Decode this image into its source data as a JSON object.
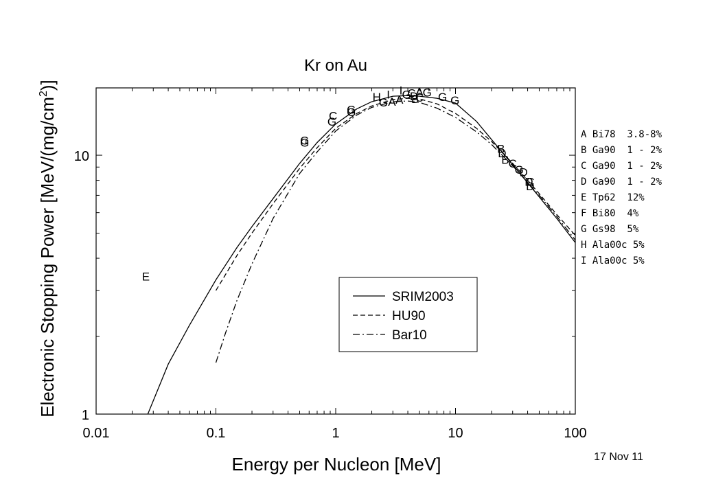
{
  "chart_data": {
    "type": "line",
    "title": "Kr on Au",
    "xlabel": "Energy per Nucleon [MeV]",
    "ylabel_main": "Electronic Stopping Power [MeV/(mg/cm",
    "ylabel_sup": "2",
    "ylabel_end": ")]",
    "x_scale": "log",
    "y_scale": "log",
    "xlim": [
      0.01,
      100
    ],
    "ylim": [
      1,
      18.2
    ],
    "x_ticks": [
      {
        "value": 0.01,
        "label": "0.01"
      },
      {
        "value": 0.1,
        "label": "0.1"
      },
      {
        "value": 1,
        "label": "1"
      },
      {
        "value": 10,
        "label": "10"
      },
      {
        "value": 100,
        "label": "100"
      }
    ],
    "y_ticks": [
      {
        "value": 1,
        "label": "1"
      },
      {
        "value": 10,
        "label": "10"
      }
    ],
    "legend_position": "bottom-center",
    "series": [
      {
        "name": "SRIM2003",
        "dash": "solid",
        "x": [
          0.027,
          0.04,
          0.06,
          0.1,
          0.15,
          0.2,
          0.3,
          0.5,
          0.7,
          1,
          1.5,
          2,
          3,
          4,
          5,
          7,
          10,
          15,
          20,
          30,
          50,
          70,
          100
        ],
        "y": [
          1.0,
          1.56,
          2.2,
          3.3,
          4.4,
          5.3,
          6.8,
          9.3,
          11.2,
          13.2,
          15.1,
          16.1,
          16.9,
          17.0,
          16.9,
          16.6,
          15.9,
          13.5,
          11.5,
          9.2,
          6.9,
          5.7,
          4.6
        ]
      },
      {
        "name": "HU90",
        "dash": "dash",
        "x": [
          0.1,
          0.15,
          0.2,
          0.3,
          0.5,
          0.7,
          1,
          1.5,
          2,
          3,
          4,
          5,
          7,
          10,
          15,
          20,
          30,
          40,
          50,
          70,
          100
        ],
        "y": [
          3.0,
          4.1,
          5.0,
          6.5,
          8.9,
          10.7,
          12.7,
          14.5,
          15.5,
          16.4,
          16.6,
          16.5,
          15.8,
          14.5,
          12.7,
          11.3,
          9.3,
          8.0,
          7.1,
          5.9,
          4.9
        ]
      },
      {
        "name": "Bar10",
        "dash": "dashdot",
        "x": [
          0.1,
          0.12,
          0.15,
          0.2,
          0.3,
          0.5,
          0.7,
          1,
          1.5,
          2,
          3,
          4,
          5,
          7,
          10,
          15,
          20,
          30,
          50,
          70,
          100
        ],
        "y": [
          1.58,
          2.05,
          2.75,
          3.8,
          5.7,
          8.5,
          10.3,
          12.4,
          14.3,
          15.3,
          16.1,
          16.2,
          16.0,
          15.2,
          14.0,
          12.3,
          11.0,
          9.1,
          7.0,
          5.8,
          4.7
        ]
      }
    ],
    "points": [
      {
        "l": "E",
        "x": 0.026,
        "y": 3.4
      },
      {
        "l": "G",
        "x": 0.55,
        "y": 11.4
      },
      {
        "l": "G",
        "x": 0.55,
        "y": 11.2
      },
      {
        "l": "C",
        "x": 0.95,
        "y": 14.2
      },
      {
        "l": "G",
        "x": 0.93,
        "y": 13.5
      },
      {
        "l": "G",
        "x": 1.35,
        "y": 15.0
      },
      {
        "l": "G",
        "x": 1.35,
        "y": 14.7
      },
      {
        "l": "H",
        "x": 2.2,
        "y": 16.8
      },
      {
        "l": "I",
        "x": 2.75,
        "y": 17.2
      },
      {
        "l": "G",
        "x": 2.5,
        "y": 16.0
      },
      {
        "l": "A",
        "x": 2.95,
        "y": 16.1
      },
      {
        "l": "I",
        "x": 3.5,
        "y": 17.8
      },
      {
        "l": "A",
        "x": 3.4,
        "y": 16.4
      },
      {
        "l": "G",
        "x": 3.9,
        "y": 17.2
      },
      {
        "l": "C",
        "x": 4.3,
        "y": 17.4
      },
      {
        "l": "D",
        "x": 4.5,
        "y": 16.9
      },
      {
        "l": "B",
        "x": 4.6,
        "y": 16.5
      },
      {
        "l": "A",
        "x": 5.0,
        "y": 17.6
      },
      {
        "l": "G",
        "x": 5.8,
        "y": 17.5
      },
      {
        "l": "C",
        "x": 5.0,
        "y": 16.7
      },
      {
        "l": "G",
        "x": 7.8,
        "y": 16.8
      },
      {
        "l": "G",
        "x": 9.9,
        "y": 16.3
      },
      {
        "l": "B",
        "x": 24.0,
        "y": 10.6
      },
      {
        "l": "D",
        "x": 24.5,
        "y": 10.2
      },
      {
        "l": "B",
        "x": 26.0,
        "y": 9.6
      },
      {
        "l": "C",
        "x": 30.0,
        "y": 9.3
      },
      {
        "l": "G",
        "x": 34.0,
        "y": 8.8
      },
      {
        "l": "D",
        "x": 37.0,
        "y": 8.6
      },
      {
        "l": "C",
        "x": 42.0,
        "y": 7.9
      },
      {
        "l": "D",
        "x": 42.0,
        "y": 7.6
      },
      {
        "l": "D",
        "x": 41.0,
        "y": 7.9
      }
    ],
    "point_legend": [
      "A Bi78  3.8-8%",
      "B Ga90  1 - 2%",
      "C Ga90  1 - 2%",
      "D Ga90  1 - 2%",
      "E Tp62  12%",
      "F Bi80  4%",
      "G Gs98  5%",
      "H Ala00c 5%",
      "I Ala00c 5%"
    ],
    "date_stamp": "17 Nov 11"
  }
}
